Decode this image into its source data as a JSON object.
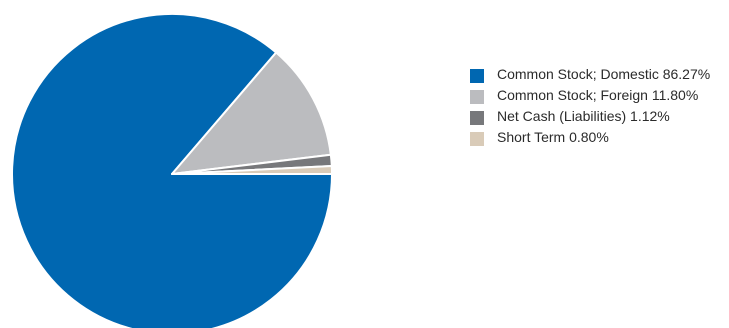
{
  "chart_data": {
    "type": "pie",
    "slices": [
      {
        "label": "Common Stock; Domestic 86.27%",
        "value": 86.27,
        "color": "#0067b1"
      },
      {
        "label": "Common Stock; Foreign 11.80%",
        "value": 11.8,
        "color": "#bbbcbf"
      },
      {
        "label": "Net Cash (Liabilities) 1.12%",
        "value": 1.12,
        "color": "#77787b"
      },
      {
        "label": "Short Term 0.80%",
        "value": 0.8,
        "color": "#d9cbb8"
      }
    ],
    "start_angle": "3 o'clock",
    "direction": "clockwise",
    "legend_position": "right"
  }
}
